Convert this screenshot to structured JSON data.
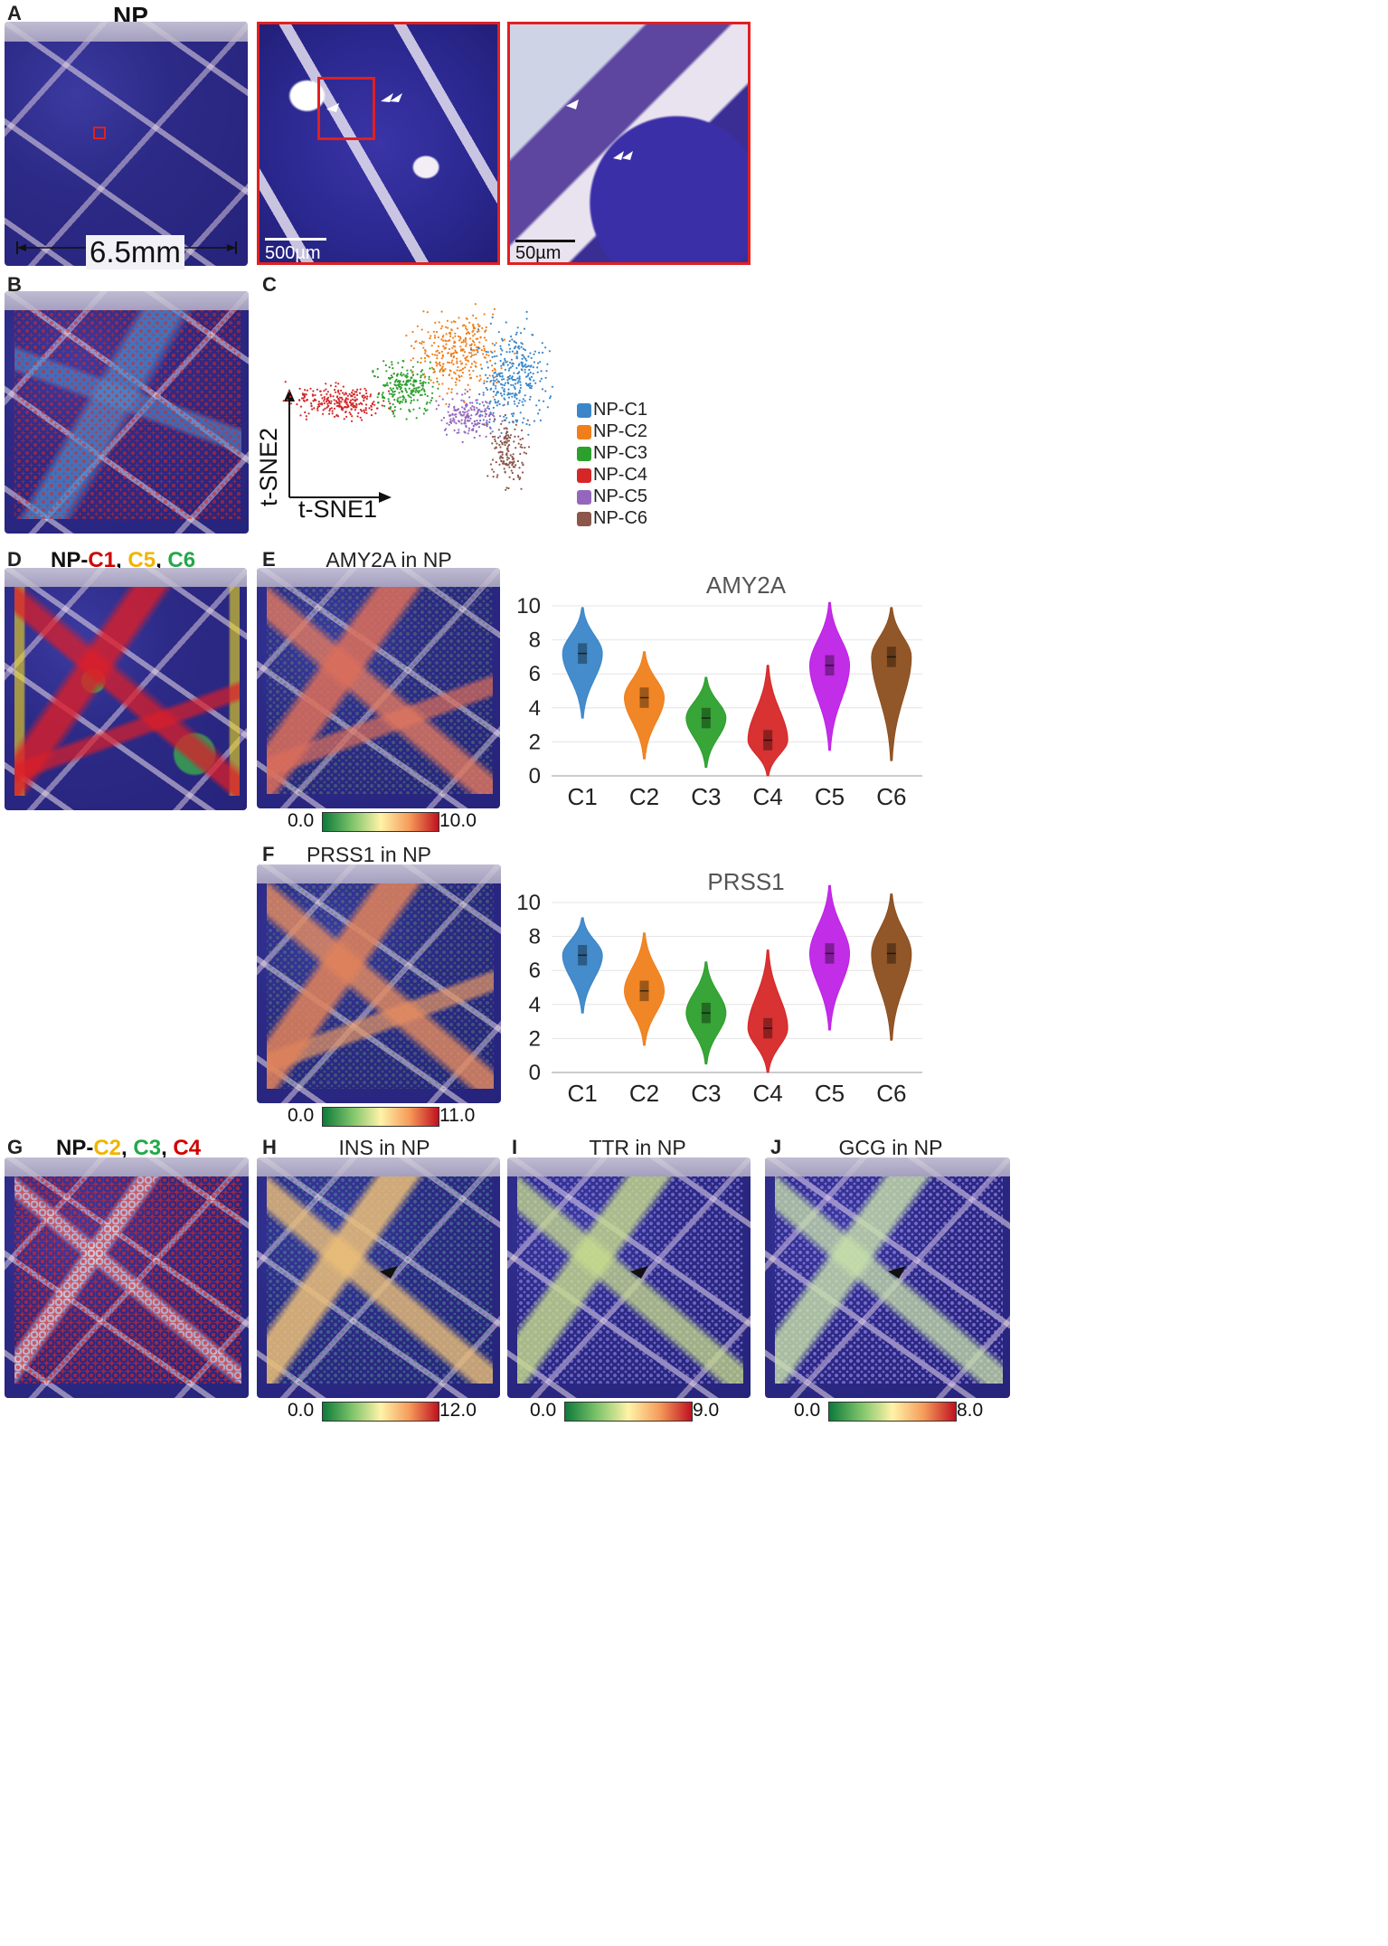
{
  "panel_labels": {
    "A": "A",
    "B": "B",
    "C": "C",
    "D": "D",
    "E": "E",
    "F": "F",
    "G": "G",
    "H": "H",
    "I": "I",
    "J": "J"
  },
  "panel_a": {
    "title": "NP",
    "dimension": "6.5mm",
    "scale_mid": "500µm",
    "scale_right": "50µm"
  },
  "panel_d": {
    "prefix": "NP-",
    "c1": "C1",
    "sep1": ", ",
    "c5": "C5",
    "sep2": ", ",
    "c6": "C6"
  },
  "panel_g": {
    "prefix": "NP-",
    "c2": "C2",
    "sep1": ", ",
    "c3": "C3",
    "sep2": ", ",
    "c4": "C4"
  },
  "colors": {
    "C1": "#3a86c8",
    "C2": "#f07f1b",
    "C3": "#2ca02c",
    "C4": "#d62728",
    "C5": "#bf22e6",
    "C6": "#8c4e1e",
    "title_red": "#d10000",
    "title_yellow": "#f0b400",
    "title_green": "#22a84a"
  },
  "tsne": {
    "xlabel": "t-SNE1",
    "ylabel": "t-SNE2",
    "legend": [
      "NP-C1",
      "NP-C2",
      "NP-C3",
      "NP-C4",
      "NP-C5",
      "NP-C6"
    ],
    "legend_colors": [
      "#3a86c8",
      "#f07f1b",
      "#2ca02c",
      "#d62728",
      "#9467bd",
      "#8c564b"
    ]
  },
  "panel_e": {
    "map_title": "AMY2A in NP",
    "cbar_min": "0.0",
    "cbar_max": "10.0"
  },
  "panel_f": {
    "map_title": "PRSS1 in NP",
    "cbar_min": "0.0",
    "cbar_max": "11.0"
  },
  "panel_h": {
    "map_title": "INS in NP",
    "cbar_min": "0.0",
    "cbar_max": "12.0"
  },
  "panel_i": {
    "map_title": "TTR in NP",
    "cbar_min": "0.0",
    "cbar_max": "9.0"
  },
  "panel_j": {
    "map_title": "GCG in NP",
    "cbar_min": "0.0",
    "cbar_max": "8.0"
  },
  "chart_data": [
    {
      "type": "violin",
      "title": "AMY2A",
      "categories": [
        "C1",
        "C2",
        "C3",
        "C4",
        "C5",
        "C6"
      ],
      "ylim": [
        0,
        10
      ],
      "yticks": [
        0,
        2,
        4,
        6,
        8,
        10
      ],
      "medians": [
        7.2,
        4.6,
        3.4,
        2.1,
        6.5,
        7.0
      ],
      "ranges": [
        [
          3.4,
          9.9
        ],
        [
          1.0,
          7.3
        ],
        [
          0.5,
          5.8
        ],
        [
          0.0,
          6.5
        ],
        [
          1.5,
          10.2
        ],
        [
          0.9,
          9.9
        ]
      ],
      "colors": [
        "#3a86c8",
        "#f07f1b",
        "#2ca02c",
        "#d62728",
        "#bf22e6",
        "#8c4e1e"
      ],
      "grid": true
    },
    {
      "type": "violin",
      "title": "PRSS1",
      "categories": [
        "C1",
        "C2",
        "C3",
        "C4",
        "C5",
        "C6"
      ],
      "ylim": [
        0,
        10
      ],
      "yticks": [
        0,
        2,
        4,
        6,
        8,
        10
      ],
      "medians": [
        6.9,
        4.8,
        3.5,
        2.6,
        7.0,
        7.0
      ],
      "ranges": [
        [
          3.5,
          9.1
        ],
        [
          1.6,
          8.2
        ],
        [
          0.5,
          6.5
        ],
        [
          0.0,
          7.2
        ],
        [
          2.5,
          11.0
        ],
        [
          1.9,
          10.5
        ]
      ],
      "colors": [
        "#3a86c8",
        "#f07f1b",
        "#2ca02c",
        "#d62728",
        "#bf22e6",
        "#8c4e1e"
      ],
      "grid": true
    }
  ]
}
